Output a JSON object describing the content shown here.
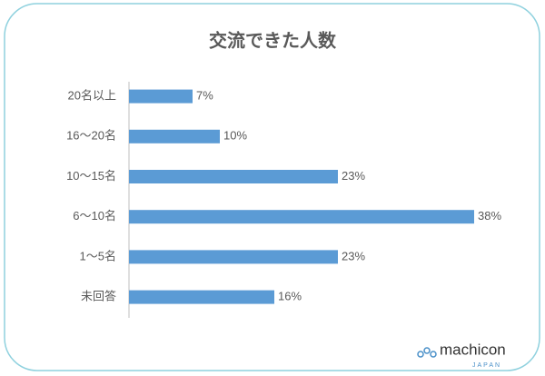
{
  "chart_data": {
    "type": "bar",
    "orientation": "horizontal",
    "title": "交流できた人数",
    "categories": [
      "20名以上",
      "16～20名",
      "10～15名",
      "6～10名",
      "1～5名",
      "未回答"
    ],
    "values": [
      7,
      10,
      23,
      38,
      23,
      16
    ],
    "value_labels": [
      "7%",
      "10%",
      "23%",
      "38%",
      "23%",
      "16%"
    ],
    "color": "#5b9bd5"
  },
  "logo": {
    "name": "machicon",
    "sub": "JAPAN"
  }
}
